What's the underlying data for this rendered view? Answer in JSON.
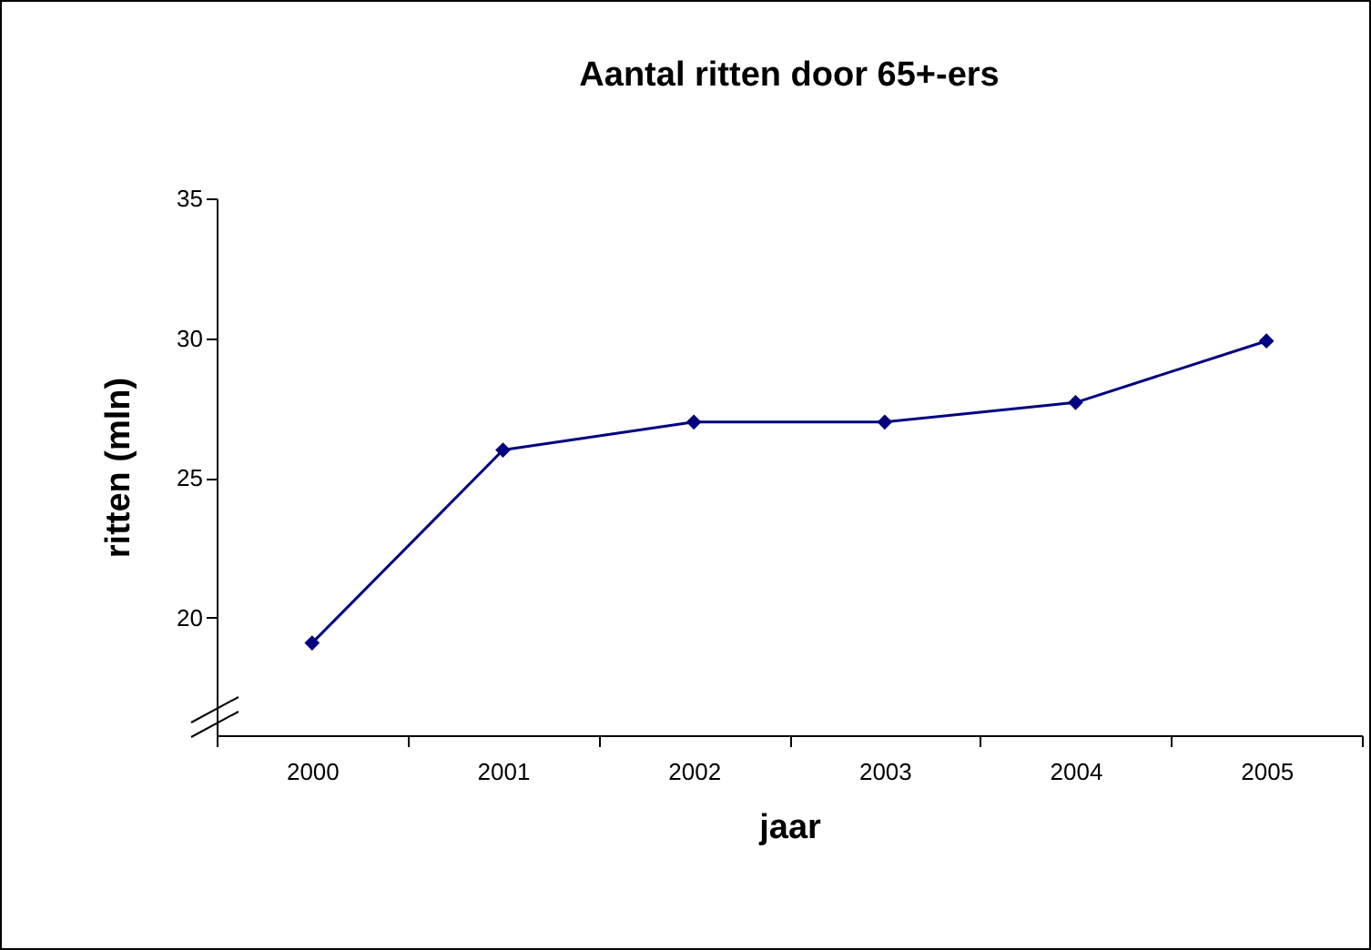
{
  "chart_data": {
    "type": "line",
    "title": "Aantal ritten door 65+-ers",
    "xlabel": "jaar",
    "ylabel": "ritten (mln)",
    "categories": [
      "2000",
      "2001",
      "2002",
      "2003",
      "2004",
      "2005"
    ],
    "series": [
      {
        "color": "#000080",
        "values": [
          19.1,
          26.0,
          27.0,
          27.0,
          27.7,
          29.9
        ]
      }
    ],
    "ylim": [
      15.8,
      35
    ],
    "yticks": [
      20,
      25,
      30,
      35
    ],
    "grid": false,
    "marker": "diamond",
    "line_style": "solid"
  }
}
